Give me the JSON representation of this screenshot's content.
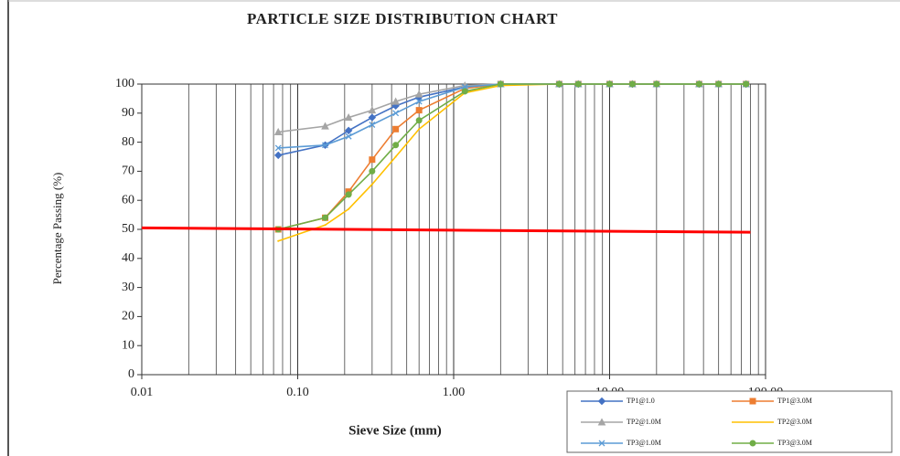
{
  "chart_data": {
    "type": "line",
    "title": "PARTICLE SIZE DISTRIBUTION CHART",
    "x_label": "Sieve Size (mm)",
    "y_label": "Percentage Passing (%)",
    "xscale": "log",
    "grid": "x",
    "legend": "bottom-right",
    "xlim": [
      0.01,
      100
    ],
    "ylim": [
      0,
      100
    ],
    "xticks": [
      {
        "value": 0.01,
        "label": "0.01"
      },
      {
        "value": 0.1,
        "label": "0.10"
      },
      {
        "value": 1,
        "label": "1.00"
      },
      {
        "value": 10,
        "label": "10.00"
      },
      {
        "value": 100,
        "label": "100.00"
      }
    ],
    "xminorticks": [
      0.02,
      0.03,
      0.04,
      0.05,
      0.06,
      0.07,
      0.08,
      0.09,
      0.2,
      0.3,
      0.4,
      0.5,
      0.6,
      0.7,
      0.8,
      0.9,
      2,
      3,
      4,
      5,
      6,
      7,
      8,
      9,
      20,
      30,
      40,
      50,
      60,
      70,
      80,
      90
    ],
    "yticks": [
      0,
      10,
      20,
      30,
      40,
      50,
      60,
      70,
      80,
      90,
      100
    ],
    "x": [
      0.075,
      0.15,
      0.212,
      0.3,
      0.425,
      0.6,
      1.18,
      2,
      4.75,
      6.3,
      10,
      14,
      20,
      37.5,
      50,
      75
    ],
    "series": [
      {
        "name": "TP1@1.0",
        "color": "#4472c4",
        "marker": "diamond",
        "values": [
          75.5,
          79,
          84,
          88.5,
          92.5,
          95.5,
          99,
          100,
          100,
          100,
          100,
          100,
          100,
          100,
          100,
          100
        ]
      },
      {
        "name": "TP1@3.0M",
        "color": "#ed7d31",
        "marker": "square",
        "values": [
          50,
          54,
          63,
          74,
          84.5,
          91,
          98.5,
          100,
          100,
          100,
          100,
          100,
          100,
          100,
          100,
          100
        ]
      },
      {
        "name": "TP2@1.0M",
        "color": "#a5a5a5",
        "marker": "triangle",
        "values": [
          83.5,
          85.5,
          88.5,
          91,
          94,
          96.5,
          99.5,
          100,
          100,
          100,
          100,
          100,
          100,
          100,
          100,
          100
        ]
      },
      {
        "name": "TP2@3.0M",
        "color": "#ffc000",
        "marker": "none",
        "values": [
          46,
          51.5,
          57,
          65.5,
          75,
          84.5,
          97,
          99.5,
          100,
          100,
          100,
          100,
          100,
          100,
          100,
          100
        ]
      },
      {
        "name": "TP3@1.0M",
        "color": "#5b9bd5",
        "marker": "cross",
        "values": [
          78,
          79,
          82,
          86,
          90,
          94,
          99,
          100,
          100,
          100,
          100,
          100,
          100,
          100,
          100,
          100
        ]
      },
      {
        "name": "TP3@3.0M",
        "color": "#70ad47",
        "marker": "circle",
        "values": [
          50,
          54,
          62,
          70,
          79,
          87.5,
          97.5,
          100,
          100,
          100,
          100,
          100,
          100,
          100,
          100,
          100
        ]
      }
    ],
    "reference_line": {
      "color": "#ff0000",
      "x": [
        0.01,
        80
      ],
      "values": [
        50.5,
        49
      ]
    }
  }
}
